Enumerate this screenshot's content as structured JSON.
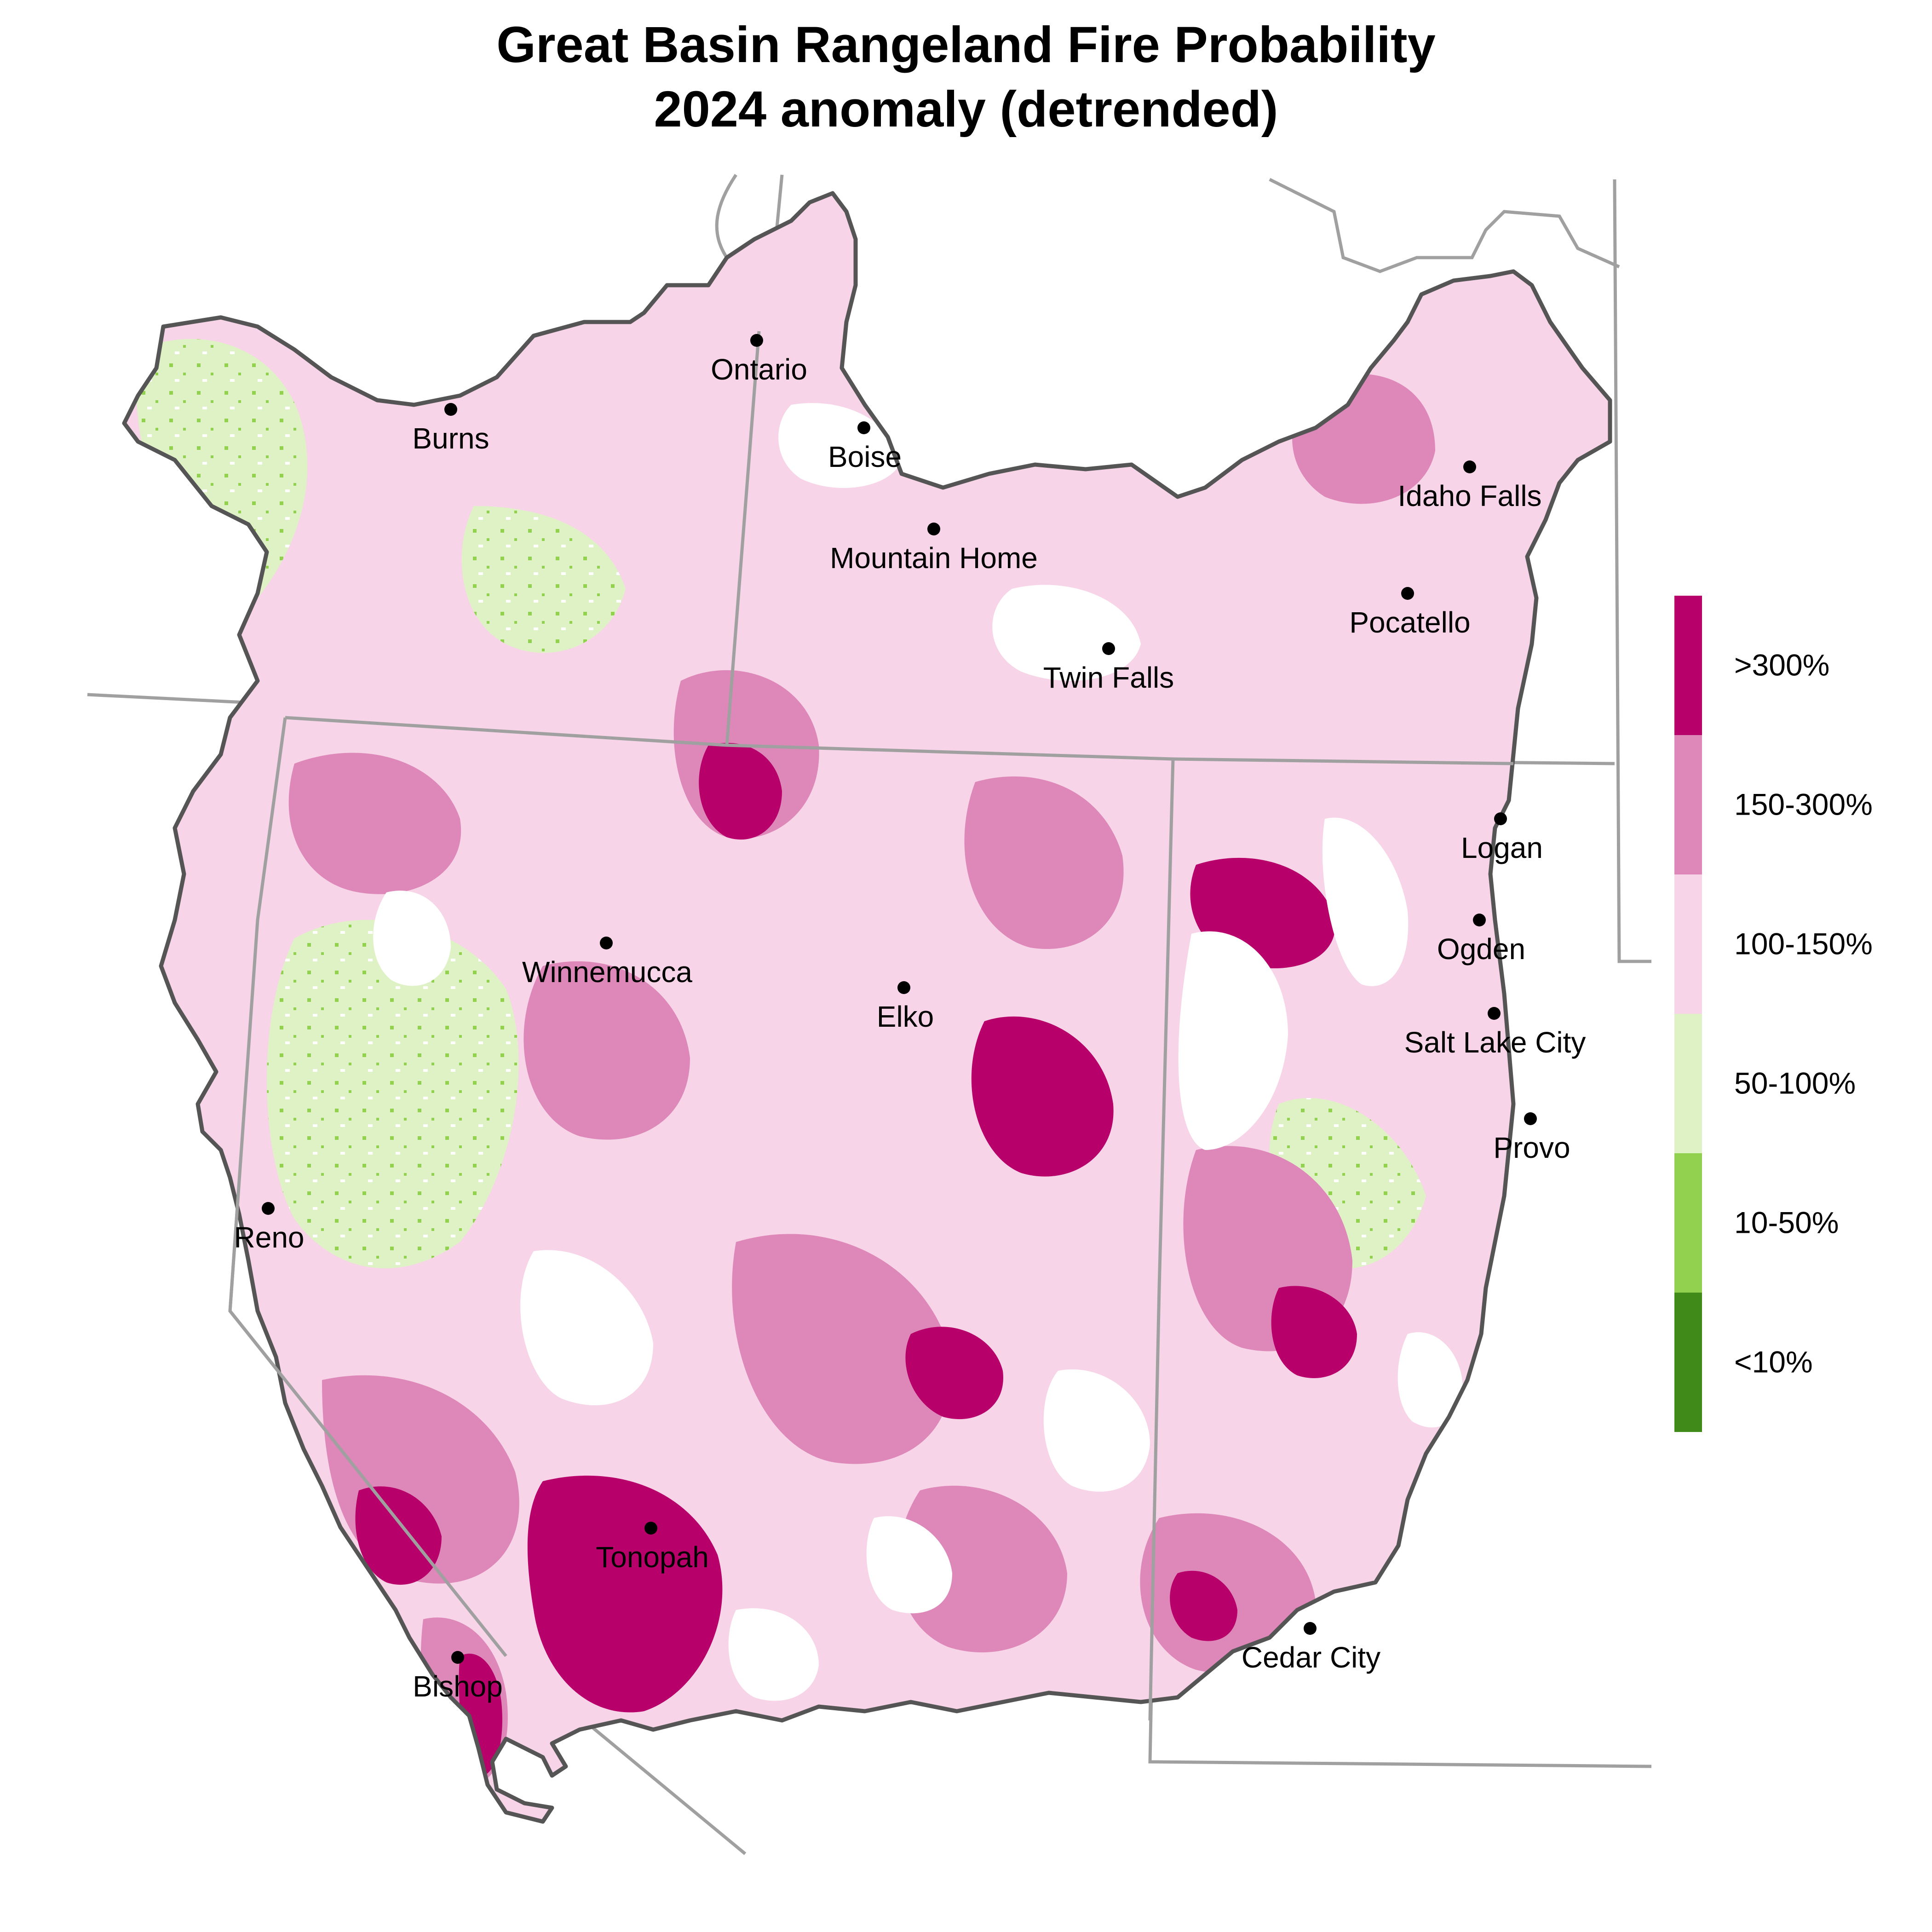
{
  "title": {
    "line1": "Great Basin Rangeland Fire Probability",
    "line2": "2024 anomaly (detrended)"
  },
  "colors": {
    "gt300": "#b8006b",
    "c150_300": "#de88b9",
    "c100_150": "#f7d4e7",
    "c50_100": "#dff2c6",
    "c10_50": "#92d150",
    "lt10": "#3f8a18",
    "outline": "#555555",
    "state_line": "#a0a0a0"
  },
  "cities": [
    {
      "name": "Ontario"
    },
    {
      "name": "Burns"
    },
    {
      "name": "Boise"
    },
    {
      "name": "Mountain Home"
    },
    {
      "name": "Idaho Falls"
    },
    {
      "name": "Pocatello"
    },
    {
      "name": "Twin Falls"
    },
    {
      "name": "Logan"
    },
    {
      "name": "Ogden"
    },
    {
      "name": "Winnemucca"
    },
    {
      "name": "Elko"
    },
    {
      "name": "Salt Lake City"
    },
    {
      "name": "Provo"
    },
    {
      "name": "Reno"
    },
    {
      "name": "Tonopah"
    },
    {
      "name": "Bishop"
    },
    {
      "name": "Cedar City"
    }
  ],
  "legend": {
    "items": [
      {
        "label": ">300%",
        "color_key": "gt300"
      },
      {
        "label": "150-300%",
        "color_key": "c150_300"
      },
      {
        "label": "100-150%",
        "color_key": "c100_150"
      },
      {
        "label": "50-100%",
        "color_key": "c50_100"
      },
      {
        "label": "10-50%",
        "color_key": "c10_50"
      },
      {
        "label": "<10%",
        "color_key": "lt10"
      }
    ]
  }
}
